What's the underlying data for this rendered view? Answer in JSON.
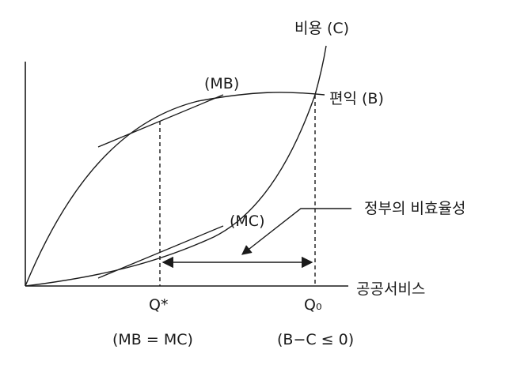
{
  "labels": {
    "cost_curve": "비용 (C)",
    "benefit_curve": "편익 (B)",
    "mb": "(MB)",
    "mc": "(MC)",
    "inefficiency": "정부의 비효율성",
    "x_axis": "공공서비스",
    "q_star": "Q*",
    "q_zero": "Q₀",
    "q_star_condition": "(MB = MC)",
    "q_zero_condition": "(B−C ≤ 0)"
  }
}
